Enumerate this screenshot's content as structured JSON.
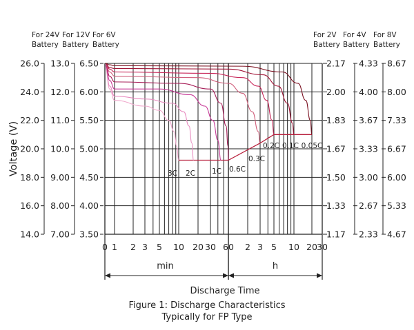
{
  "chart_data": {
    "type": "line",
    "title": "Figure 1: Discharge Characteristics",
    "subtitle": "Typically for FP Type",
    "ylabel": "Voltage (V)",
    "xlabel": "Discharge Time",
    "x_unit_min": "min",
    "x_unit_h": "h",
    "x_ticks_min": [
      "0",
      "1",
      "2",
      "3",
      "5",
      "10",
      "20",
      "30",
      "60"
    ],
    "x_ticks_h": [
      "2",
      "3",
      "5",
      "10",
      "20",
      "30"
    ],
    "y_axes_left": [
      {
        "header": [
          "For 24V",
          "Battery"
        ],
        "ticks": [
          "26.0",
          "24.0",
          "22.0",
          "20.0",
          "18.0",
          "16.0",
          "14.0"
        ]
      },
      {
        "header": [
          "For 12V",
          "Battery"
        ],
        "ticks": [
          "13.0",
          "12.0",
          "11.0",
          "10.0",
          "9.00",
          "8.00",
          "7.00"
        ]
      },
      {
        "header": [
          "For 6V",
          "Battery"
        ],
        "ticks": [
          "6.50",
          "6.00",
          "5.50",
          "5.00",
          "4.50",
          "4.00",
          "3.50"
        ]
      }
    ],
    "y_axes_right": [
      {
        "header": [
          "For 2V",
          "Battery"
        ],
        "ticks": [
          "2.17",
          "2.00",
          "1.83",
          "1.67",
          "1.50",
          "1.33",
          "1.17"
        ]
      },
      {
        "header": [
          "For 4V",
          "Battery"
        ],
        "ticks": [
          "4.33",
          "4.00",
          "3.67",
          "3.33",
          "3.00",
          "2.67",
          "2.33"
        ]
      },
      {
        "header": [
          "For 8V",
          "Battery"
        ],
        "ticks": [
          "8.67",
          "8.00",
          "7.33",
          "6.67",
          "6.00",
          "5.33",
          "4.67"
        ]
      }
    ],
    "ylim_12v": [
      7.0,
      13.0
    ],
    "cutoff_12v": [
      {
        "rate": "3C",
        "value": 9.6
      },
      {
        "rate": "2C",
        "value": 9.6
      },
      {
        "rate": "1C",
        "value": 9.6
      },
      {
        "rate": "0.6C",
        "value": 9.6
      },
      {
        "rate": "0.3C",
        "value": 10.2
      },
      {
        "rate": "0.2C",
        "value": 10.5
      },
      {
        "rate": "0.1C",
        "value": 10.5
      },
      {
        "rate": "0.05C",
        "value": 10.5
      }
    ],
    "series": [
      {
        "name": "3C",
        "color": "#f0a8cc",
        "end_min": 10,
        "points": [
          [
            0.05,
            12.85
          ],
          [
            0.5,
            12.1
          ],
          [
            1,
            11.7
          ],
          [
            3,
            11.5
          ],
          [
            5,
            11.35
          ],
          [
            7,
            11.0
          ],
          [
            8.5,
            10.6
          ],
          [
            9.3,
            10.1
          ],
          [
            10,
            9.6
          ]
        ]
      },
      {
        "name": "2C",
        "color": "#e88cc0",
        "end_min": 17,
        "points": [
          [
            0.05,
            12.9
          ],
          [
            0.5,
            12.2
          ],
          [
            1,
            11.85
          ],
          [
            3,
            11.75
          ],
          [
            8,
            11.6
          ],
          [
            12,
            11.3
          ],
          [
            14.5,
            10.8
          ],
          [
            16,
            10.2
          ],
          [
            17,
            9.6
          ]
        ]
      },
      {
        "name": "1C",
        "color": "#c83c98",
        "end_min": 45,
        "points": [
          [
            0.05,
            12.95
          ],
          [
            0.5,
            12.4
          ],
          [
            1,
            12.1
          ],
          [
            5,
            12.1
          ],
          [
            15,
            11.9
          ],
          [
            25,
            11.5
          ],
          [
            33,
            11.0
          ],
          [
            40,
            10.3
          ],
          [
            45,
            9.6
          ]
        ]
      },
      {
        "name": "0.6C",
        "color": "#a8205a",
        "end_min": 60,
        "points": [
          [
            0.05,
            13.0
          ],
          [
            0.5,
            12.55
          ],
          [
            1,
            12.35
          ],
          [
            10,
            12.3
          ],
          [
            30,
            12.1
          ],
          [
            45,
            11.6
          ],
          [
            55,
            10.8
          ],
          [
            59,
            10.1
          ],
          [
            60,
            9.6
          ]
        ]
      },
      {
        "name": "0.3C",
        "color": "#d0607c",
        "end_min": 180,
        "points": [
          [
            0.05,
            13.0
          ],
          [
            0.5,
            12.7
          ],
          [
            1,
            12.55
          ],
          [
            20,
            12.5
          ],
          [
            60,
            12.3
          ],
          [
            100,
            11.95
          ],
          [
            140,
            11.3
          ],
          [
            170,
            10.6
          ],
          [
            180,
            10.2
          ]
        ]
      },
      {
        "name": "0.2C",
        "color": "#c8285a",
        "end_min": 300,
        "points": [
          [
            0.05,
            13.0
          ],
          [
            0.5,
            12.8
          ],
          [
            1,
            12.7
          ],
          [
            30,
            12.65
          ],
          [
            100,
            12.5
          ],
          [
            170,
            12.2
          ],
          [
            230,
            11.7
          ],
          [
            280,
            11.0
          ],
          [
            300,
            10.5
          ]
        ]
      },
      {
        "name": "0.1C",
        "color": "#a01436",
        "end_min": 600,
        "points": [
          [
            0.05,
            13.0
          ],
          [
            0.5,
            12.85
          ],
          [
            1,
            12.82
          ],
          [
            60,
            12.8
          ],
          [
            200,
            12.6
          ],
          [
            350,
            12.2
          ],
          [
            480,
            11.6
          ],
          [
            570,
            10.9
          ],
          [
            600,
            10.5
          ]
        ]
      },
      {
        "name": "0.05C",
        "color": "#7a1020",
        "end_min": 1200,
        "points": [
          [
            0.05,
            13.0
          ],
          [
            0.5,
            12.95
          ],
          [
            1,
            12.92
          ],
          [
            100,
            12.9
          ],
          [
            400,
            12.7
          ],
          [
            700,
            12.3
          ],
          [
            950,
            11.7
          ],
          [
            1130,
            11.0
          ],
          [
            1200,
            10.5
          ]
        ]
      }
    ]
  }
}
